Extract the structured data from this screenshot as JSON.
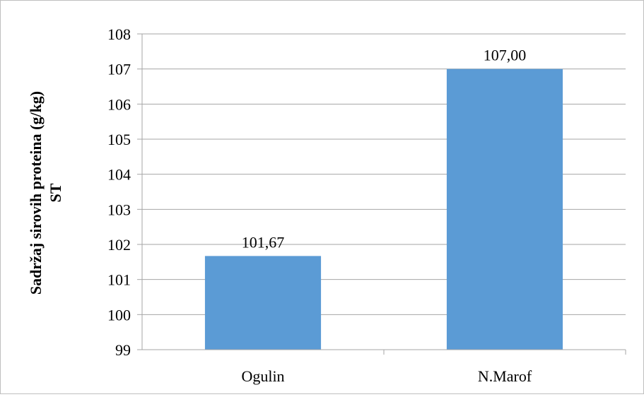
{
  "chart_data": {
    "type": "bar",
    "categories": [
      "Ogulin",
      "N.Marof"
    ],
    "values": [
      101.67,
      107.0
    ],
    "data_labels": [
      "101,67",
      "107,00"
    ],
    "ylabel_lines": [
      "Sadržaj sirovih proteina (g/kg)",
      "ST"
    ],
    "ylim": [
      99,
      108
    ],
    "yticks": [
      "99",
      "100",
      "101",
      "102",
      "103",
      "104",
      "105",
      "106",
      "107",
      "108"
    ],
    "grid": true,
    "bar_color": "#5b9bd5",
    "grid_color": "#a6a6a6"
  }
}
